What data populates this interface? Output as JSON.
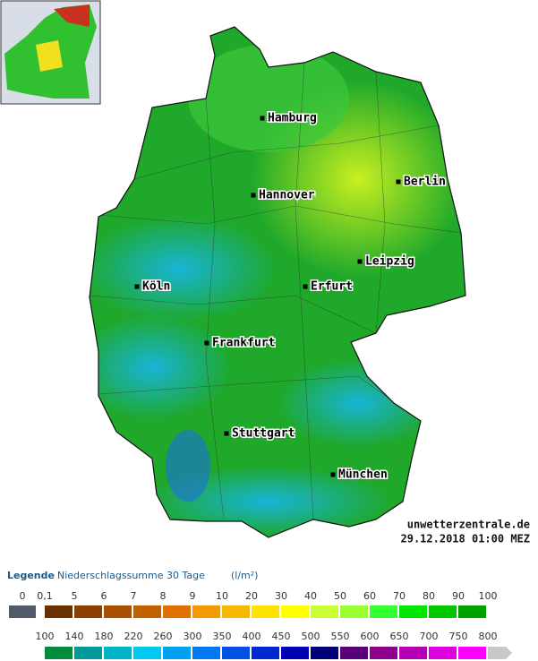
{
  "map": {
    "cities": [
      {
        "name": "Hamburg"
      },
      {
        "name": "Hannover"
      },
      {
        "name": "Berlin"
      },
      {
        "name": "Leipzig"
      },
      {
        "name": "Köln"
      },
      {
        "name": "Erfurt"
      },
      {
        "name": "Frankfurt"
      },
      {
        "name": "Stuttgart"
      },
      {
        "name": "München"
      }
    ],
    "watermark": {
      "site": "unwetterzentrale.de",
      "timestamp": "29.12.2018 01:00 MEZ"
    }
  },
  "legend": {
    "title": "Legende",
    "subtitle": "Niederschlagssumme 30 Tage",
    "unit": "(l/m²)",
    "rows": [
      {
        "labels": [
          "0",
          "0,1",
          "5",
          "6",
          "7",
          "8",
          "9",
          "10",
          "20",
          "30",
          "40",
          "50",
          "60",
          "70",
          "80",
          "90",
          "100"
        ],
        "colors": [
          "#505a6b",
          "#6b3000",
          "#8b3f00",
          "#a85000",
          "#c26000",
          "#e07000",
          "#f29a00",
          "#f7b800",
          "#ffe200",
          "#ffff00",
          "#ccff33",
          "#99ff33",
          "#33ff33",
          "#00e600",
          "#00c800",
          "#00a000"
        ]
      },
      {
        "labels": [
          "100",
          "140",
          "180",
          "220",
          "260",
          "300",
          "350",
          "400",
          "450",
          "500",
          "550",
          "600",
          "650",
          "700",
          "750",
          "800"
        ],
        "colors": [
          "#008c3c",
          "#009a9a",
          "#00b4c8",
          "#00c8f0",
          "#00a0f0",
          "#0078f0",
          "#0050e6",
          "#0028d2",
          "#0000b4",
          "#000078",
          "#5a0078",
          "#8c008c",
          "#b400b4",
          "#dc00dc",
          "#ff00ff",
          "#c8c8c8"
        ]
      }
    ]
  }
}
